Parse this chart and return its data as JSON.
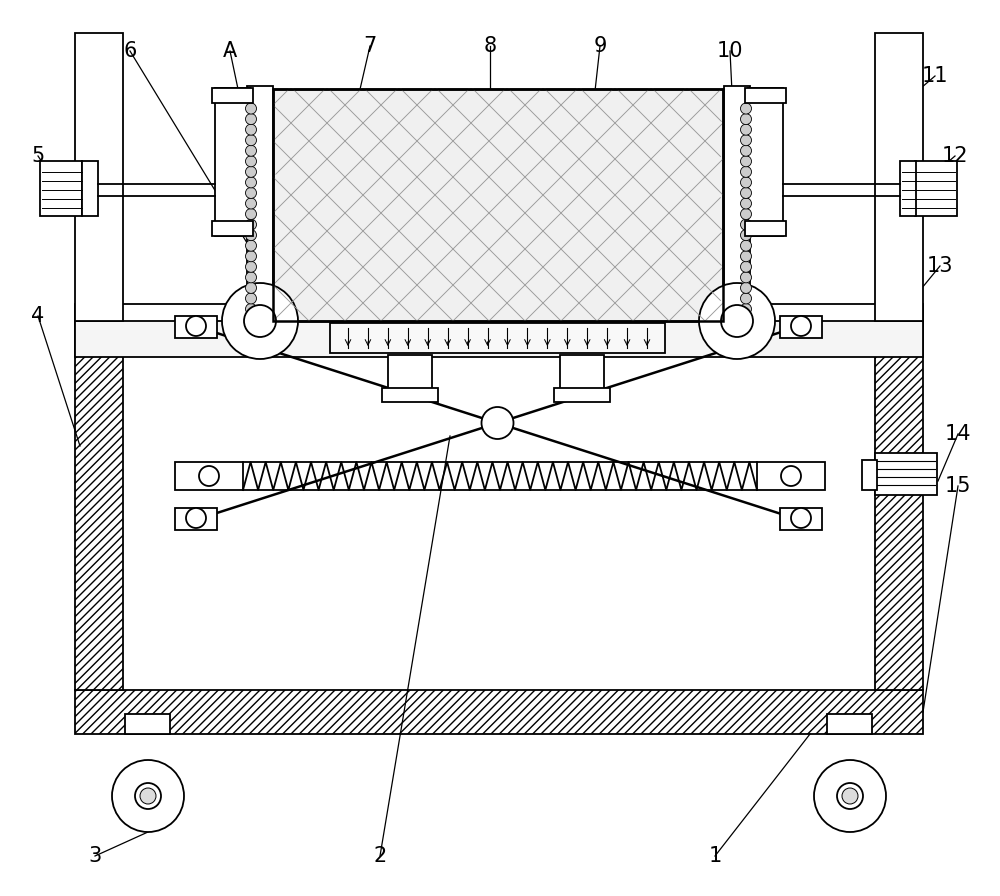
{
  "bg_color": "#ffffff",
  "lc": "black",
  "lw": 1.2,
  "hatch_dense": "////",
  "hatch_sparse": "//",
  "gray_fill": "#f0f0f0",
  "light_fill": "#f8f8f8"
}
